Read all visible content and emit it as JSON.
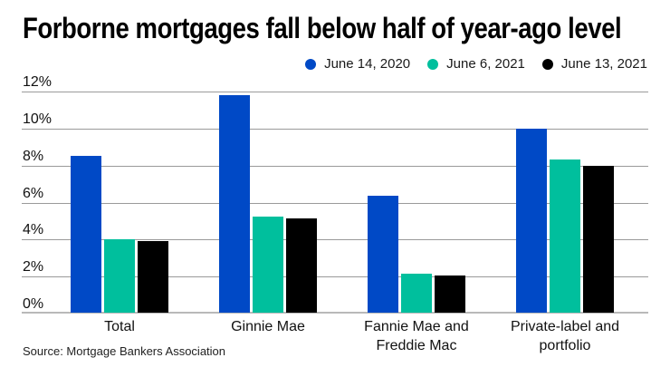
{
  "title": "Forborne mortgages fall below half of year-ago level",
  "source": "Source: Mortgage Bankers Association",
  "colors": {
    "blue": "#0049C6",
    "teal": "#00BF9D",
    "black": "#000000",
    "gridline": "#9a9a9a",
    "axis_line": "#b9b9b9",
    "background": "#ffffff"
  },
  "chart_data": {
    "type": "bar",
    "title": "Forborne mortgages fall below half of year-ago level",
    "categories": [
      "Total",
      "Ginnie Mae",
      "Fannie Mae and\nFreddie Mac",
      "Private-label and\nportfolio"
    ],
    "series": [
      {
        "name": "June 14, 2020",
        "color": "#0049C6",
        "values": [
          8.45,
          11.75,
          6.3,
          9.95
        ]
      },
      {
        "name": "June 6, 2021",
        "color": "#00BF9D",
        "values": [
          3.95,
          5.2,
          2.1,
          8.3
        ]
      },
      {
        "name": "June 13, 2021",
        "color": "#000000",
        "values": [
          3.87,
          5.1,
          2.0,
          7.95
        ]
      }
    ],
    "xlabel": "",
    "ylabel": "",
    "ylim": [
      0,
      12
    ],
    "y_tick_labels": [
      "12%",
      "10%",
      "8%",
      "6%",
      "4%",
      "2%",
      "0%"
    ],
    "y_tick_values": [
      12,
      10,
      8,
      6,
      4,
      2,
      0
    ],
    "grid": true,
    "legend_position": "top-right",
    "source": "Source: Mortgage Bankers Association"
  }
}
